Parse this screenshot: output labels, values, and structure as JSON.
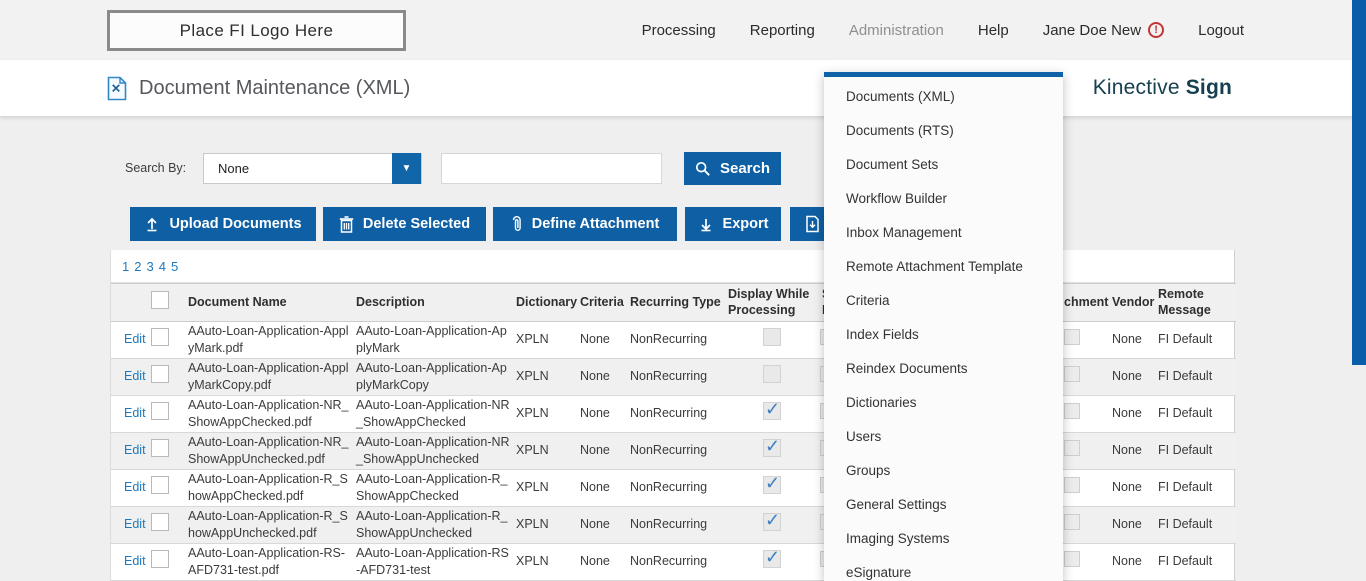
{
  "colors": {
    "accent": "#0e5fa4",
    "link": "#1d79bb",
    "brand": "#16404f",
    "menu_bar": "#0f62a8",
    "scroll_strip": "#0a5da9",
    "check": "#3c80c0",
    "warning": "#c43434"
  },
  "header": {
    "logo_text": "Place FI Logo Here",
    "nav": {
      "processing": "Processing",
      "reporting": "Reporting",
      "administration": "Administration",
      "help": "Help",
      "user": "Jane Doe New",
      "logout": "Logout"
    },
    "warning_glyph": "!"
  },
  "title_bar": {
    "title": "Document Maintenance (XML)",
    "brand_name": "Kinective",
    "brand_suffix": "Sign"
  },
  "admin_menu": {
    "items": [
      "Documents (XML)",
      "Documents (RTS)",
      "Document Sets",
      "Workflow Builder",
      "Inbox Management",
      "Remote Attachment Template",
      "Criteria",
      "Index Fields",
      "Reindex Documents",
      "Dictionaries",
      "Users",
      "Groups",
      "General Settings",
      "Imaging Systems",
      "eSignature"
    ]
  },
  "search": {
    "label": "Search By:",
    "selected_option": "None",
    "input_value": "",
    "button_label": "Search"
  },
  "toolbar": {
    "upload": "Upload Documents",
    "delete": "Delete Selected",
    "define": "Define Attachment",
    "export": "Export"
  },
  "pagination": {
    "pages": [
      "1",
      "2",
      "3",
      "4",
      "5"
    ]
  },
  "table": {
    "check_glyph": "✓",
    "headers": {
      "document_name": "Document Name",
      "description": "Description",
      "dictionary": "Dictionary",
      "criteria": "Criteria",
      "recurring_type": "Recurring Type",
      "display_while_processing": "Display While Processing",
      "occluded_fragment_line1": "S",
      "occluded_fragment_line2": "I",
      "attachment_fragment": "chment",
      "vendor": "Vendor",
      "remote_message_line1": "Remote",
      "remote_message_line2": "Message"
    },
    "rows": [
      {
        "edit": "Edit",
        "name": "AAuto-Loan-Application-ApplyMark.pdf",
        "description": "AAuto-Loan-Application-ApplyMark",
        "dictionary": "XPLN",
        "criteria": "None",
        "recurring": "NonRecurring",
        "display_checked": false,
        "vendor": "None",
        "remote": "FI Default"
      },
      {
        "edit": "Edit",
        "name": "AAuto-Loan-Application-ApplyMarkCopy.pdf",
        "description": "AAuto-Loan-Application-ApplyMarkCopy",
        "dictionary": "XPLN",
        "criteria": "None",
        "recurring": "NonRecurring",
        "display_checked": false,
        "vendor": "None",
        "remote": "FI Default"
      },
      {
        "edit": "Edit",
        "name": "AAuto-Loan-Application-NR_ShowAppChecked.pdf",
        "description": "AAuto-Loan-Application-NR_ShowAppChecked",
        "dictionary": "XPLN",
        "criteria": "None",
        "recurring": "NonRecurring",
        "display_checked": true,
        "vendor": "None",
        "remote": "FI Default"
      },
      {
        "edit": "Edit",
        "name": "AAuto-Loan-Application-NR_ShowAppUnchecked.pdf",
        "description": "AAuto-Loan-Application-NR_ShowAppUnchecked",
        "dictionary": "XPLN",
        "criteria": "None",
        "recurring": "NonRecurring",
        "display_checked": true,
        "vendor": "None",
        "remote": "FI Default"
      },
      {
        "edit": "Edit",
        "name": "AAuto-Loan-Application-R_ShowAppChecked.pdf",
        "description": "AAuto-Loan-Application-R_ShowAppChecked",
        "dictionary": "XPLN",
        "criteria": "None",
        "recurring": "NonRecurring",
        "display_checked": true,
        "vendor": "None",
        "remote": "FI Default"
      },
      {
        "edit": "Edit",
        "name": "AAuto-Loan-Application-R_ShowAppUnchecked.pdf",
        "description": "AAuto-Loan-Application-R_ShowAppUnchecked",
        "dictionary": "XPLN",
        "criteria": "None",
        "recurring": "NonRecurring",
        "display_checked": true,
        "vendor": "None",
        "remote": "FI Default"
      },
      {
        "edit": "Edit",
        "name": "AAuto-Loan-Application-RS-AFD731-test.pdf",
        "description": "AAuto-Loan-Application-RS-AFD731-test",
        "dictionary": "XPLN",
        "criteria": "None",
        "recurring": "NonRecurring",
        "display_checked": true,
        "vendor": "None",
        "remote": "FI Default"
      }
    ]
  }
}
